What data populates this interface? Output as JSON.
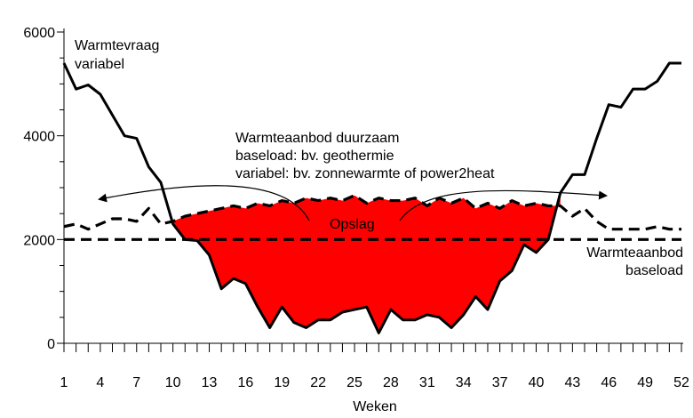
{
  "chart_data": {
    "type": "line",
    "xlabel": "Weken",
    "ylabel": "",
    "xlim": [
      1,
      52
    ],
    "ylim": [
      0,
      6000
    ],
    "x_tick_labels": [
      "1",
      "4",
      "7",
      "10",
      "13",
      "16",
      "19",
      "22",
      "25",
      "28",
      "31",
      "34",
      "37",
      "40",
      "43",
      "46",
      "49",
      "52"
    ],
    "y_tick_labels": [
      "0",
      "2000",
      "4000",
      "6000"
    ],
    "x_tick_values": [
      1,
      4,
      7,
      10,
      13,
      16,
      19,
      22,
      25,
      28,
      31,
      34,
      37,
      40,
      43,
      46,
      49,
      52
    ],
    "y_tick_values": [
      0,
      2000,
      4000,
      6000
    ],
    "series": [
      {
        "name": "Warmtevraag variabel",
        "style": "solid",
        "x": [
          1,
          2,
          3,
          4,
          5,
          6,
          7,
          8,
          9,
          10,
          11,
          12,
          13,
          14,
          15,
          16,
          17,
          18,
          19,
          20,
          21,
          22,
          23,
          24,
          25,
          26,
          27,
          28,
          29,
          30,
          31,
          32,
          33,
          34,
          35,
          36,
          37,
          38,
          39,
          40,
          41,
          42,
          43,
          44,
          45,
          46,
          47,
          48,
          49,
          50,
          51,
          52
        ],
        "y": [
          5400,
          4900,
          4980,
          4800,
          4400,
          4000,
          3950,
          3400,
          3100,
          2300,
          2000,
          1980,
          1700,
          1050,
          1250,
          1150,
          700,
          300,
          700,
          400,
          300,
          450,
          450,
          600,
          650,
          700,
          200,
          650,
          450,
          450,
          550,
          500,
          300,
          550,
          900,
          650,
          1200,
          1400,
          1900,
          1750,
          2000,
          2900,
          3250,
          3250,
          3950,
          4600,
          4550,
          4900,
          4900,
          5050,
          5400,
          5400
        ]
      },
      {
        "name": "Warmteaanbod duurzaam",
        "style": "dashed",
        "x": [
          1,
          2,
          3,
          4,
          5,
          6,
          7,
          8,
          9,
          10,
          11,
          12,
          13,
          14,
          15,
          16,
          17,
          18,
          19,
          20,
          21,
          22,
          23,
          24,
          25,
          26,
          27,
          28,
          29,
          30,
          31,
          32,
          33,
          34,
          35,
          36,
          37,
          38,
          39,
          40,
          41,
          42,
          43,
          44,
          45,
          46,
          47,
          48,
          49,
          50,
          51,
          52
        ],
        "y": [
          2250,
          2300,
          2200,
          2300,
          2400,
          2400,
          2350,
          2600,
          2300,
          2350,
          2450,
          2500,
          2550,
          2600,
          2650,
          2600,
          2700,
          2650,
          2750,
          2700,
          2800,
          2750,
          2800,
          2750,
          2850,
          2700,
          2800,
          2750,
          2750,
          2800,
          2650,
          2800,
          2700,
          2800,
          2600,
          2700,
          2600,
          2750,
          2650,
          2700,
          2650,
          2650,
          2450,
          2600,
          2350,
          2200,
          2200,
          2200,
          2200,
          2250,
          2200,
          2200
        ]
      },
      {
        "name": "Warmteaanbod baseload",
        "style": "dashed",
        "x": [
          1,
          52
        ],
        "y": [
          2000,
          2000
        ]
      }
    ],
    "fill_region": {
      "label": "Opslag",
      "color": "#ff0000",
      "x_range": [
        10,
        42
      ]
    },
    "annotations": {
      "warmtevraag": [
        "Warmtevraag",
        "variabel"
      ],
      "duurzaam": [
        "Warmteaanbod duurzaam",
        "baseload: bv. geothermie",
        "variabel: bv. zonnewarmte of power2heat"
      ],
      "opslag": "Opslag",
      "baseload": [
        "Warmteaanbod",
        "baseload"
      ]
    }
  }
}
